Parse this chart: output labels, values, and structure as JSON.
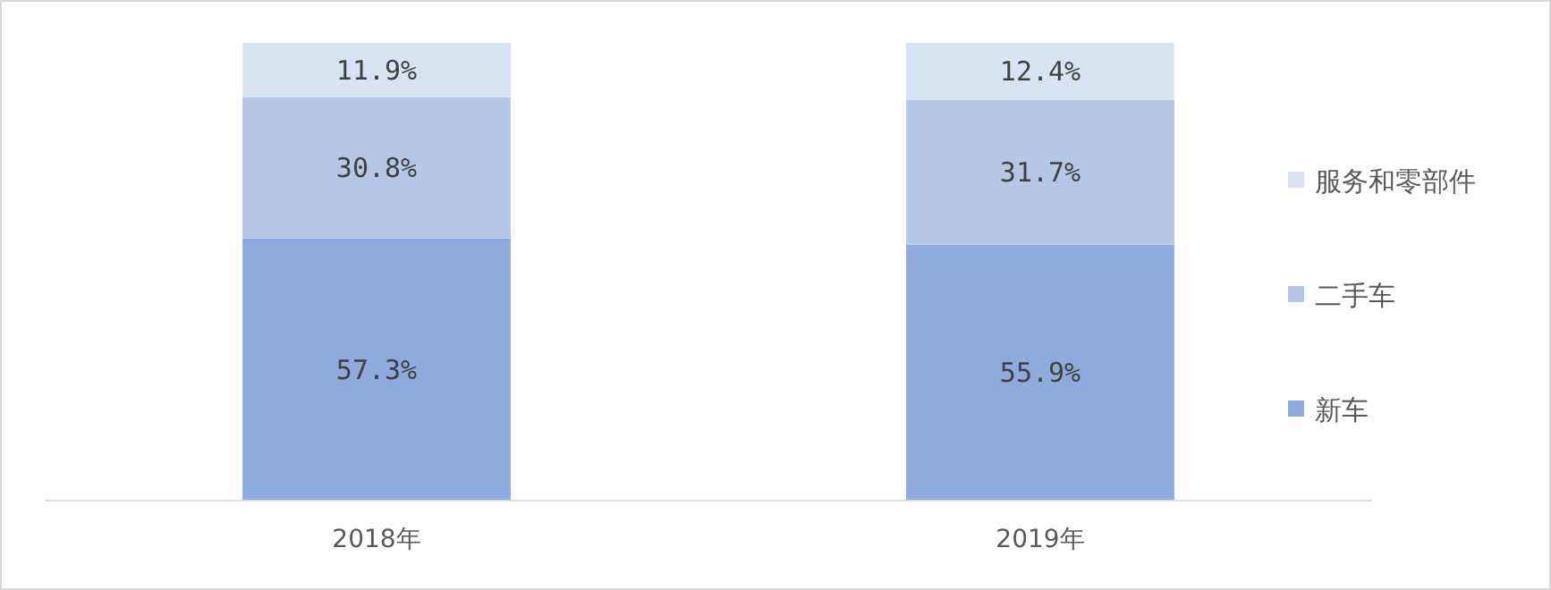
{
  "chart_data": {
    "type": "bar",
    "stacked": true,
    "categories": [
      "2018年",
      "2019年"
    ],
    "series": [
      {
        "name": "新车",
        "color": "#8faadc",
        "values": [
          57.3,
          55.9
        ],
        "value_labels": [
          "57.3%",
          "55.9%"
        ]
      },
      {
        "name": "二手车",
        "color": "#b4c7e7",
        "values": [
          30.8,
          31.7
        ],
        "value_labels": [
          "30.8%",
          "31.7%"
        ]
      },
      {
        "name": "服务和零部件",
        "color": "#dae3f3",
        "values": [
          11.9,
          12.4
        ],
        "value_labels": [
          "11.9%",
          "12.4%"
        ]
      }
    ],
    "legend": "right",
    "grid": false
  }
}
